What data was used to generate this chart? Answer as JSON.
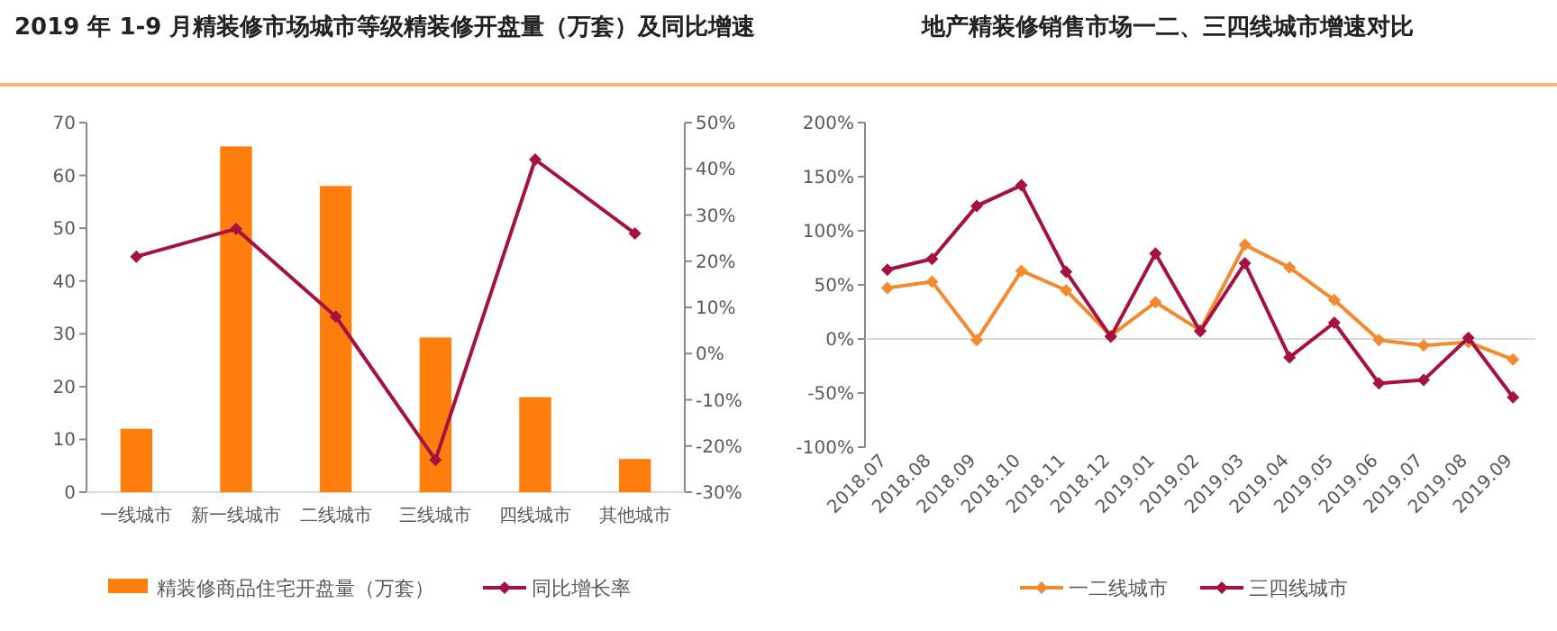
{
  "chart_data": [
    {
      "type": "bar",
      "title": "2019 年 1-9 月精装修市场城市等级精装修开盘量（万套）及同比增速",
      "categories": [
        "一线城市",
        "新一线城市",
        "二线城市",
        "三线城市",
        "四线城市",
        "其他城市"
      ],
      "legend": "bottom",
      "marker": "diamond",
      "ylim": [
        0,
        70
      ],
      "yticks": [
        0,
        10,
        20,
        30,
        40,
        50,
        60,
        70
      ],
      "y2lim": [
        -30,
        50
      ],
      "y2ticks": [
        {
          "value": -30,
          "label": "-30%"
        },
        {
          "value": -20,
          "label": "-20%"
        },
        {
          "value": -10,
          "label": "-10%"
        },
        {
          "value": 0,
          "label": "0%"
        },
        {
          "value": 10,
          "label": "10%"
        },
        {
          "value": 20,
          "label": "20%"
        },
        {
          "value": 30,
          "label": "30%"
        },
        {
          "value": 40,
          "label": "40%"
        },
        {
          "value": 50,
          "label": "50%"
        }
      ],
      "series": [
        {
          "name": "精装修商品住宅开盘量（万套）",
          "type": "bar",
          "color": "#ff7f0e",
          "values": [
            12,
            65.5,
            58,
            29.3,
            18,
            6.3
          ]
        },
        {
          "name": "同比增长率",
          "type": "line",
          "axis": "y2",
          "color": "#a5123f",
          "values": [
            21,
            27,
            8,
            -23,
            42,
            26
          ]
        }
      ]
    },
    {
      "type": "line",
      "title": "地产精装修销售市场一二、三四线城市增速对比",
      "categories": [
        "2018.07",
        "2018.08",
        "2018.09",
        "2018.10",
        "2018.11",
        "2018.12",
        "2019.01",
        "2019.02",
        "2019.03",
        "2019.04",
        "2019.05",
        "2019.06",
        "2019.07",
        "2019.08",
        "2019.09"
      ],
      "legend": "bottom",
      "marker": "diamond",
      "ylim": [
        -100,
        200
      ],
      "yticks": [
        {
          "value": -100,
          "label": "-100%"
        },
        {
          "value": -50,
          "label": "-50%"
        },
        {
          "value": 0,
          "label": "0%"
        },
        {
          "value": 50,
          "label": "50%"
        },
        {
          "value": 100,
          "label": "100%"
        },
        {
          "value": 150,
          "label": "150%"
        },
        {
          "value": 200,
          "label": "200%"
        }
      ],
      "series": [
        {
          "name": "一二线城市",
          "color": "#f28a30",
          "values": [
            47,
            53,
            -1,
            63,
            45,
            3,
            34,
            8,
            87,
            66,
            36,
            -1,
            -6,
            -3,
            -19
          ]
        },
        {
          "name": "三四线城市",
          "color": "#a5123f",
          "values": [
            64,
            74,
            123,
            142,
            62,
            2,
            79,
            7,
            70,
            -17,
            15,
            -41,
            -38,
            1,
            -54
          ]
        }
      ]
    }
  ]
}
